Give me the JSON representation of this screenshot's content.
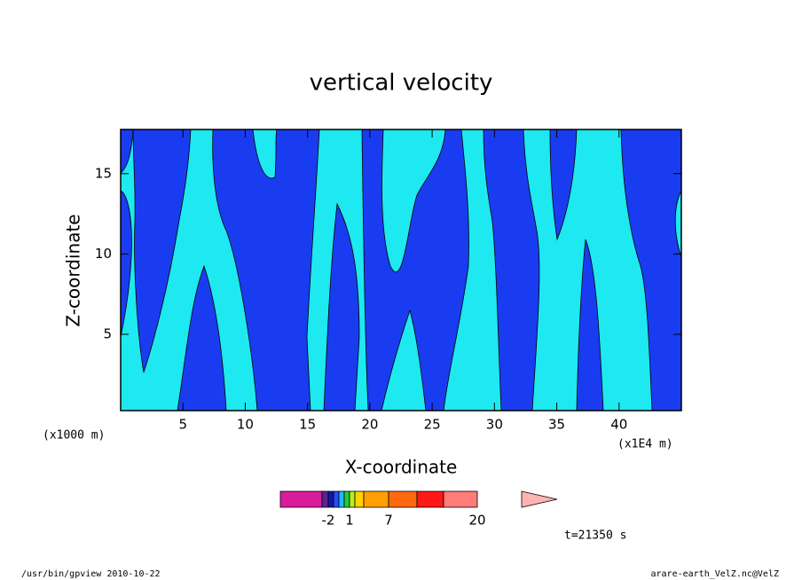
{
  "chart_data": {
    "type": "contour",
    "title": "vertical velocity",
    "xlabel": "X-coordinate",
    "ylabel": "Z-coordinate",
    "xunit": "(x1E4 m)",
    "yunit": "(x1000 m)",
    "xlim": [
      0,
      45
    ],
    "xticks": [
      5,
      10,
      15,
      20,
      25,
      30,
      35,
      40
    ],
    "ylim": [
      0.25,
      17.75
    ],
    "yticks": [
      5,
      10,
      15
    ],
    "colors": {
      "negative": "#1a3cf0",
      "positive": "#1ee8f0"
    },
    "colorbar": {
      "colors": [
        "#d81c9c",
        "#5a2592",
        "#1616a8",
        "#1e50ff",
        "#20b8ff",
        "#22cc33",
        "#b4f01e",
        "#ffd200",
        "#ffa000",
        "#ff6a10",
        "#ff1818",
        "#ff7c78",
        "#ffb4b4"
      ],
      "ticks": [
        -2,
        1,
        7,
        20
      ]
    },
    "time_label": "t=21350 s",
    "footer_left": "/usr/bin/gpview  2010-10-22",
    "footer_right": "arare-earth_VelZ.nc@VelZ"
  }
}
